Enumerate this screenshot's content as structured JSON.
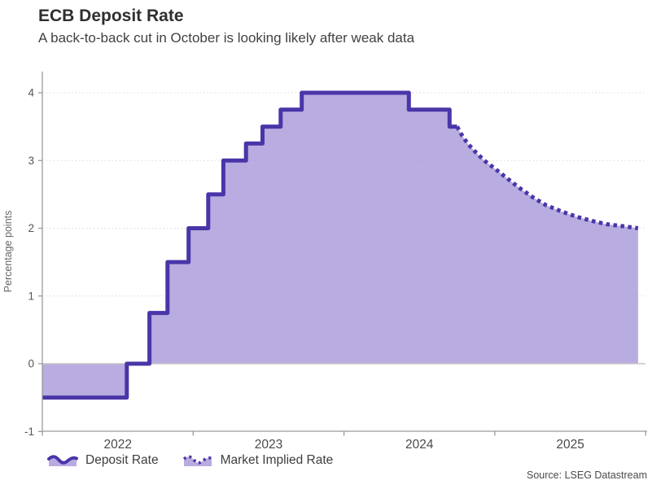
{
  "header": {
    "title": "ECB Deposit Rate",
    "subtitle": "A back-to-back cut in October is looking likely after weak data"
  },
  "legend": {
    "items": [
      {
        "label": "Deposit Rate",
        "style": "solid"
      },
      {
        "label": "Market Implied Rate",
        "style": "dotted"
      }
    ]
  },
  "source": "Source: LSEG Datastream",
  "icons": {
    "deposit_rate_swatch": "area-wave-solid-icon",
    "market_implied_swatch": "area-wave-dotted-icon"
  },
  "colors": {
    "line": "#4a35a8",
    "fill": "#a697d8",
    "fill_opacity": 0.8,
    "legend_fill": "#b9abdf",
    "grid": "#d9d9d9",
    "zero_line": "#c6c6c6",
    "axis": "#9a9a9a",
    "tick_text": "#555555",
    "axis_title_text": "#666666"
  },
  "chart_data": {
    "type": "area",
    "title": "ECB Deposit Rate",
    "subtitle": "A back-to-back cut in October is looking likely after weak data",
    "xlabel": "",
    "ylabel": "Percentage points",
    "xlim": [
      2022,
      2026
    ],
    "ylim": [
      -1,
      4.3
    ],
    "baseline": 0,
    "grid": "dotted-horizontal",
    "legend_position": "bottom-left",
    "y_ticks": [
      -1,
      0,
      1,
      2,
      3,
      4
    ],
    "x_year_labels": [
      "2022",
      "2023",
      "2024",
      "2025"
    ],
    "x_tick_boundaries": [
      2022,
      2023,
      2024,
      2025,
      2026
    ],
    "series": [
      {
        "name": "Deposit Rate",
        "style": "solid-step",
        "points": [
          [
            2022.0,
            -0.5
          ],
          [
            2022.56,
            0.0
          ],
          [
            2022.71,
            0.75
          ],
          [
            2022.83,
            1.5
          ],
          [
            2022.97,
            2.0
          ],
          [
            2023.1,
            2.5
          ],
          [
            2023.2,
            3.0
          ],
          [
            2023.35,
            3.25
          ],
          [
            2023.46,
            3.5
          ],
          [
            2023.58,
            3.75
          ],
          [
            2023.72,
            4.0
          ],
          [
            2024.43,
            3.75
          ],
          [
            2024.7,
            3.5
          ]
        ],
        "end_x": 2024.75
      },
      {
        "name": "Market Implied Rate",
        "style": "dotted-line",
        "points": [
          [
            2024.75,
            3.5
          ],
          [
            2024.78,
            3.38
          ],
          [
            2024.82,
            3.25
          ],
          [
            2024.87,
            3.13
          ],
          [
            2024.93,
            3.0
          ],
          [
            2025.0,
            2.88
          ],
          [
            2025.08,
            2.74
          ],
          [
            2025.16,
            2.6
          ],
          [
            2025.25,
            2.46
          ],
          [
            2025.34,
            2.34
          ],
          [
            2025.44,
            2.25
          ],
          [
            2025.54,
            2.17
          ],
          [
            2025.64,
            2.11
          ],
          [
            2025.74,
            2.06
          ],
          [
            2025.85,
            2.03
          ],
          [
            2025.95,
            2.0
          ]
        ]
      }
    ]
  }
}
